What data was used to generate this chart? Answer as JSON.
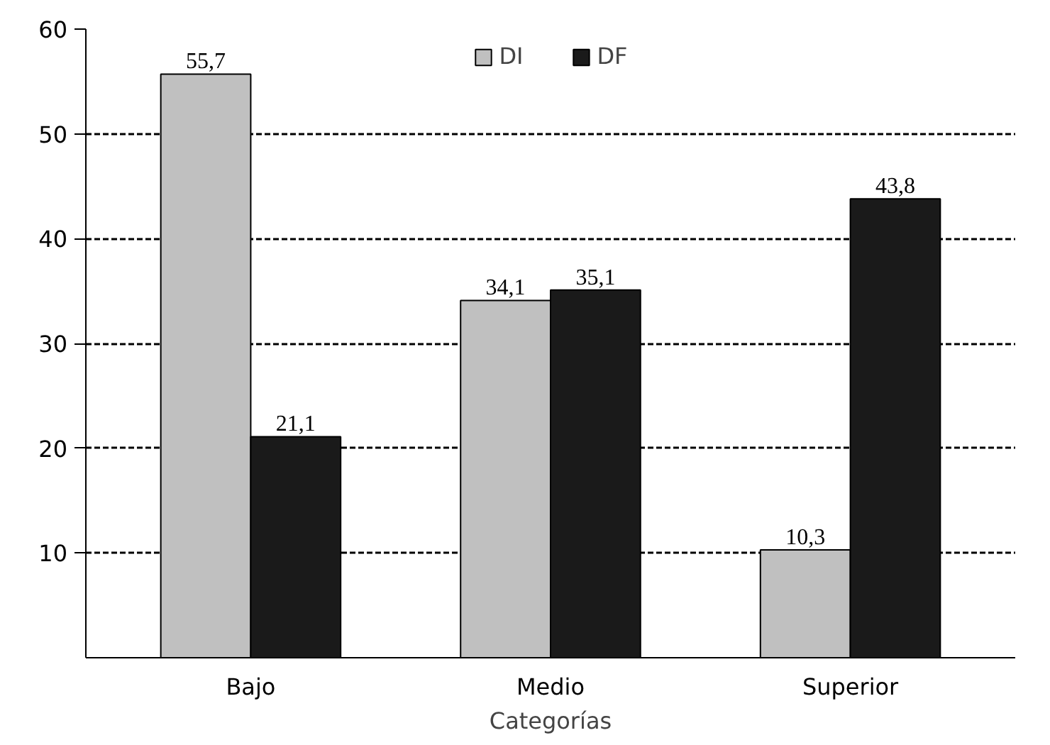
{
  "chart_data": {
    "type": "bar",
    "xlabel": "Categorías",
    "categories": [
      "Bajo",
      "Medio",
      "Superior"
    ],
    "series": [
      {
        "name": "DI",
        "color": "#c0c0c0",
        "values": [
          55.7,
          34.1,
          10.3
        ],
        "value_labels": [
          "55,7",
          "34,1",
          "10,3"
        ]
      },
      {
        "name": "DF",
        "color": "#1a1a1a",
        "values": [
          21.1,
          35.1,
          43.8
        ],
        "value_labels": [
          "21,1",
          "35,1",
          "43,8"
        ]
      }
    ],
    "ylim": [
      0,
      60
    ],
    "yticks": [
      10,
      20,
      30,
      40,
      50,
      60
    ],
    "grid": "y",
    "legend": "top"
  }
}
